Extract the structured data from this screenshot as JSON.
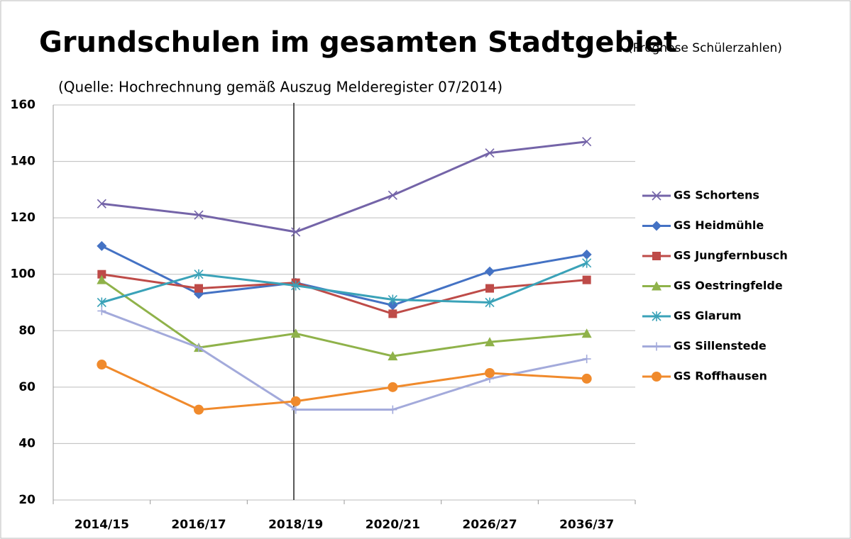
{
  "chart_data": {
    "type": "line",
    "title": "Grundschulen im gesamten Stadtgebiet",
    "title_note": "(Prognose Schülerzahlen)",
    "subtitle": "(Quelle: Hochrechnung gemäß Auszug Melderegister 07/2014)",
    "categories": [
      "2014/15",
      "2016/17",
      "2018/19",
      "2020/21",
      "2026/27",
      "2036/37"
    ],
    "ylim": [
      20,
      160
    ],
    "yticks": [
      20,
      40,
      60,
      80,
      100,
      120,
      140,
      160
    ],
    "grid": true,
    "legend": "right",
    "series": [
      {
        "name": "GS Schortens",
        "color": "#7464a8",
        "marker": "x",
        "values": [
          125,
          121,
          115,
          128,
          143,
          147
        ]
      },
      {
        "name": "GS Heidmühle",
        "color": "#4472c4",
        "marker": "diamond",
        "values": [
          110,
          93,
          97,
          89,
          101,
          107
        ]
      },
      {
        "name": "GS Jungfernbusch",
        "color": "#be4b48",
        "marker": "square",
        "values": [
          100,
          95,
          97,
          86,
          95,
          98
        ]
      },
      {
        "name": "GS Oestringfelde",
        "color": "#8fb24a",
        "marker": "triangle",
        "values": [
          98,
          74,
          79,
          71,
          76,
          79
        ]
      },
      {
        "name": "GS Glarum",
        "color": "#3aa2b8",
        "marker": "star",
        "values": [
          90,
          100,
          96,
          91,
          90,
          104
        ]
      },
      {
        "name": "GS Sillenstede",
        "color": "#a3aadb",
        "marker": "plus",
        "values": [
          87,
          74,
          52,
          52,
          63,
          70
        ]
      },
      {
        "name": "GS Roffhausen",
        "color": "#f08a2c",
        "marker": "circle",
        "values": [
          68,
          52,
          55,
          60,
          65,
          63
        ]
      }
    ]
  }
}
